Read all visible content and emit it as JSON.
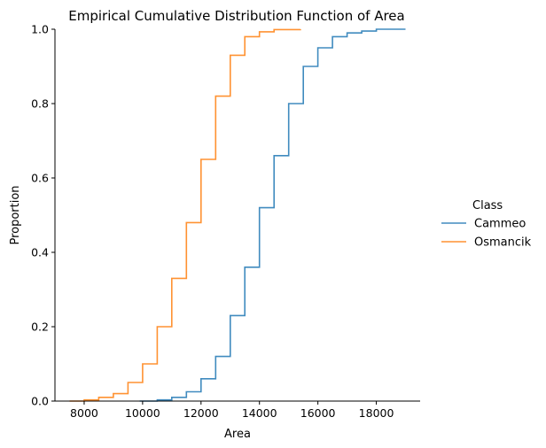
{
  "chart_data": {
    "type": "line",
    "title": "Empirical Cumulative Distribution Function of Area",
    "xlabel": "Area",
    "ylabel": "Proportion",
    "xlim": [
      7000,
      19500
    ],
    "ylim": [
      0,
      1
    ],
    "xticks": [
      8000,
      10000,
      12000,
      14000,
      16000,
      18000
    ],
    "yticks": [
      0.0,
      0.2,
      0.4,
      0.6,
      0.8,
      1.0
    ],
    "ytick_labels": [
      "0.0",
      "0.2",
      "0.4",
      "0.6",
      "0.8",
      "1.0"
    ],
    "grid": false,
    "legend": {
      "title": "Class",
      "placement": "right-outside"
    },
    "series": [
      {
        "name": "Cammeo",
        "color": "#1f77b4",
        "points": [
          [
            9900,
            0.0
          ],
          [
            10500,
            0.003
          ],
          [
            11000,
            0.01
          ],
          [
            11500,
            0.025
          ],
          [
            12000,
            0.06
          ],
          [
            12500,
            0.12
          ],
          [
            13000,
            0.23
          ],
          [
            13500,
            0.36
          ],
          [
            14000,
            0.52
          ],
          [
            14500,
            0.66
          ],
          [
            15000,
            0.8
          ],
          [
            15500,
            0.9
          ],
          [
            16000,
            0.95
          ],
          [
            16500,
            0.98
          ],
          [
            17000,
            0.99
          ],
          [
            17500,
            0.995
          ],
          [
            18000,
            1.0
          ],
          [
            19000,
            1.0
          ]
        ]
      },
      {
        "name": "Osmancik",
        "color": "#ff7f0e",
        "points": [
          [
            7500,
            0.0
          ],
          [
            8000,
            0.003
          ],
          [
            8500,
            0.01
          ],
          [
            9000,
            0.02
          ],
          [
            9500,
            0.05
          ],
          [
            10000,
            0.1
          ],
          [
            10500,
            0.2
          ],
          [
            11000,
            0.33
          ],
          [
            11500,
            0.48
          ],
          [
            12000,
            0.65
          ],
          [
            12500,
            0.82
          ],
          [
            13000,
            0.93
          ],
          [
            13500,
            0.98
          ],
          [
            14000,
            0.993
          ],
          [
            14500,
            0.999
          ],
          [
            15400,
            1.0
          ]
        ]
      }
    ]
  }
}
